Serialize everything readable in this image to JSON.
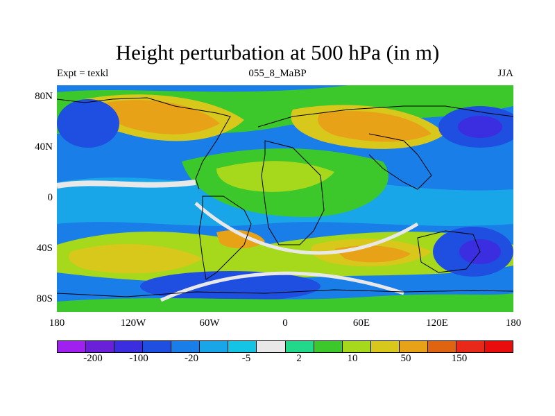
{
  "title": "Height perturbation at 500 hPa (in m)",
  "left_label": "Expt = texkl",
  "center_label": "055_8_MaBP",
  "right_label": "JJA",
  "lat_ticks": [
    "80N",
    "40N",
    "0",
    "40S",
    "80S"
  ],
  "lon_ticks": [
    "180",
    "120W",
    "60W",
    "0",
    "60E",
    "120E",
    "180"
  ],
  "colorbar": {
    "colors": [
      "#a020f0",
      "#6a1fd8",
      "#3a2ee0",
      "#1f4fe0",
      "#1a7ee8",
      "#18a6e8",
      "#14c4e4",
      "#e8e8e8",
      "#22d88a",
      "#3cc82a",
      "#a6d81c",
      "#d8c81c",
      "#e8a218",
      "#e06410",
      "#e82818",
      "#e80c0c"
    ],
    "labels": [
      "-200",
      "-100",
      "-20",
      "-5",
      "2",
      "10",
      "50",
      "150"
    ]
  },
  "colors": {
    "ocean_blue": "#1f4fe0",
    "land_green": "#3cc82a",
    "warm_orange": "#e8a218",
    "neutral_gray": "#e8e8e8"
  }
}
